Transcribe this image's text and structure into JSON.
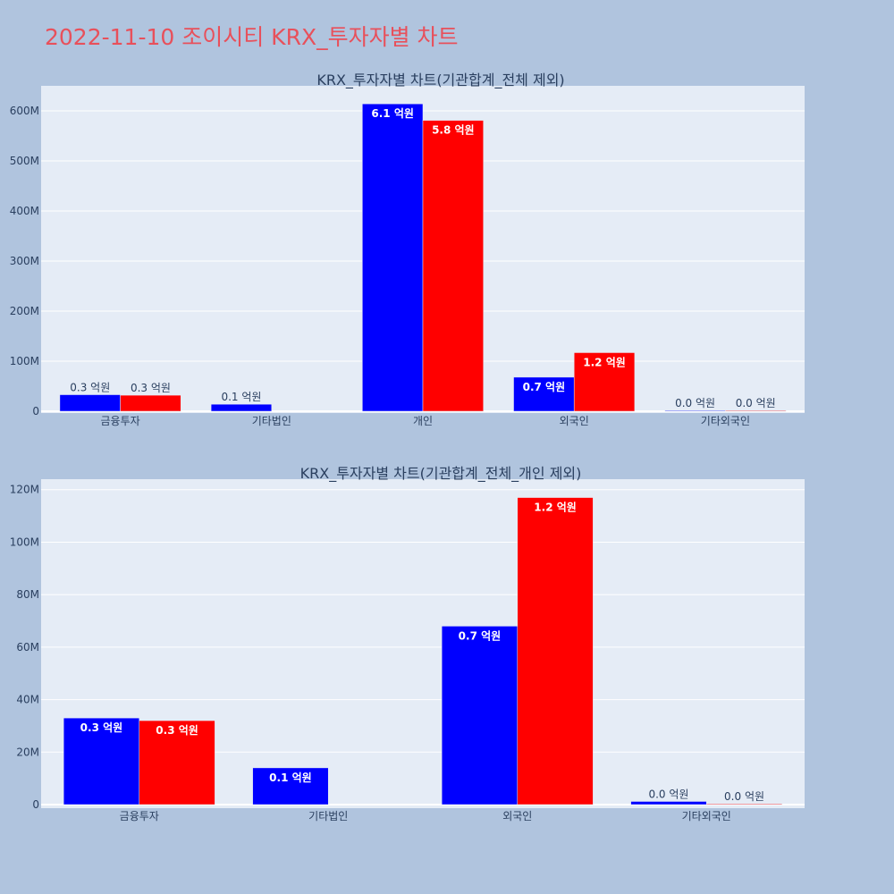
{
  "page_title": "2022-11-10 조이시티 KRX_투자자별 차트",
  "colors": {
    "buy": "#0000ff",
    "sell": "#ff0000",
    "plot_bg": "#e5ecf6",
    "page_bg": "#b0c4de",
    "title": "#e8505b"
  },
  "chart_data": [
    {
      "type": "bar",
      "title": "KRX_투자자별 차트(기관합계_전체 제외)",
      "categories": [
        "금융투자",
        "기타법인",
        "개인",
        "외국인",
        "기타외국인"
      ],
      "series": [
        {
          "values": [
            33000000,
            14000000,
            614000000,
            68000000,
            1200000
          ],
          "labels": [
            "0.3 억원",
            "0.1 억원",
            "6.1 억원",
            "0.7 억원",
            "0.0 억원"
          ]
        },
        {
          "values": [
            32000000,
            0,
            581000000,
            117000000,
            300000
          ],
          "labels": [
            "0.3 억원",
            "",
            "5.8 억원",
            "1.2 억원",
            "0.0 억원"
          ]
        }
      ],
      "ylim": [
        0,
        650000000
      ],
      "yticks": [
        0,
        100000000,
        200000000,
        300000000,
        400000000,
        500000000,
        600000000
      ],
      "ytick_labels": [
        "0",
        "100M",
        "200M",
        "300M",
        "400M",
        "500M",
        "600M"
      ],
      "grid": true
    },
    {
      "type": "bar",
      "title": "KRX_투자자별 차트(기관합계_전체_개인 제외)",
      "categories": [
        "금융투자",
        "기타법인",
        "외국인",
        "기타외국인"
      ],
      "series": [
        {
          "values": [
            33000000,
            14000000,
            68000000,
            1200000
          ],
          "labels": [
            "0.3 억원",
            "0.1 억원",
            "0.7 억원",
            "0.0 억원"
          ]
        },
        {
          "values": [
            32000000,
            0,
            117000000,
            300000
          ],
          "labels": [
            "0.3 억원",
            "",
            "1.2 억원",
            "0.0 억원"
          ]
        }
      ],
      "ylim": [
        0,
        124000000
      ],
      "yticks": [
        0,
        20000000,
        40000000,
        60000000,
        80000000,
        100000000,
        120000000
      ],
      "ytick_labels": [
        "0",
        "20M",
        "40M",
        "60M",
        "80M",
        "100M",
        "120M"
      ],
      "grid": true
    }
  ]
}
